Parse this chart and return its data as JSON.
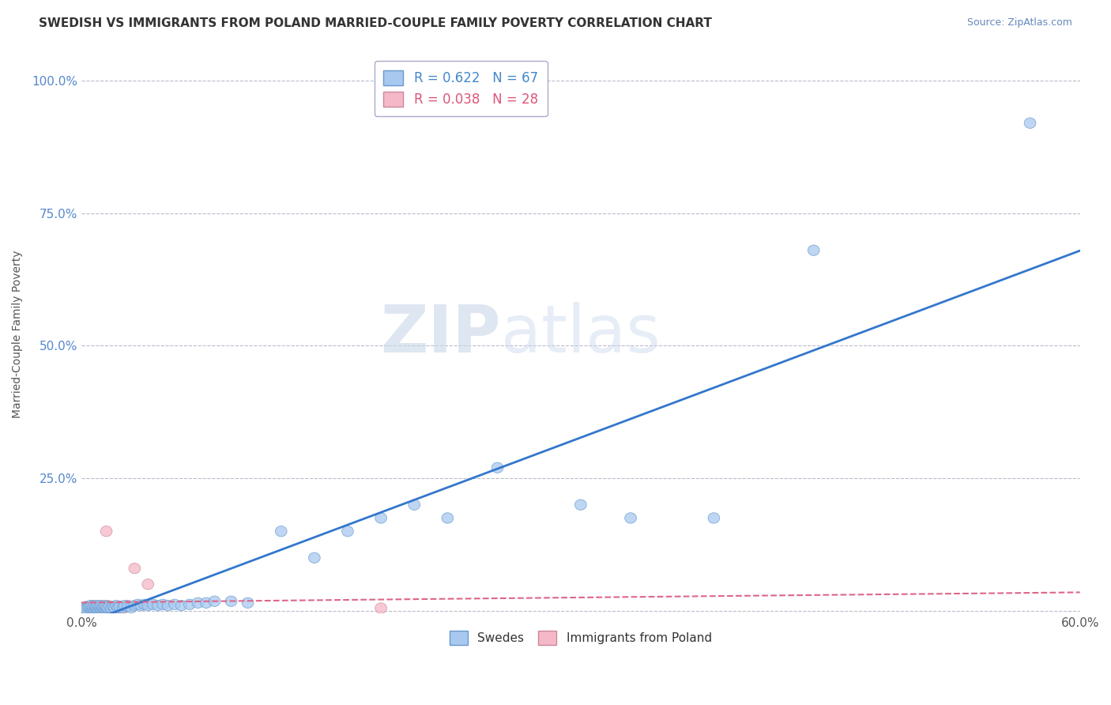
{
  "title": "SWEDISH VS IMMIGRANTS FROM POLAND MARRIED-COUPLE FAMILY POVERTY CORRELATION CHART",
  "source": "Source: ZipAtlas.com",
  "ylabel": "Married-Couple Family Poverty",
  "xlim": [
    0.0,
    0.6
  ],
  "ylim": [
    -0.005,
    1.05
  ],
  "xticks": [
    0.0,
    0.1,
    0.2,
    0.3,
    0.4,
    0.5,
    0.6
  ],
  "xticklabels": [
    "0.0%",
    "",
    "",
    "",
    "",
    "",
    "60.0%"
  ],
  "yticks": [
    0.0,
    0.25,
    0.5,
    0.75,
    1.0
  ],
  "yticklabels": [
    "",
    "25.0%",
    "50.0%",
    "75.0%",
    "100.0%"
  ],
  "legend_blue_label": "R = 0.622   N = 67",
  "legend_pink_label": "R = 0.038   N = 28",
  "swedes_label": "Swedes",
  "poland_label": "Immigrants from Poland",
  "blue_color": "#a8c8f0",
  "blue_edge": "#6699cc",
  "pink_color": "#f5b8c8",
  "pink_edge": "#cc8899",
  "blue_line_color": "#3377cc",
  "pink_line_color": "#dd6688",
  "grid_color": "#bbbbcc",
  "background_color": "#ffffff",
  "swedes_x": [
    0.002,
    0.003,
    0.003,
    0.004,
    0.005,
    0.005,
    0.006,
    0.006,
    0.007,
    0.007,
    0.008,
    0.008,
    0.009,
    0.009,
    0.01,
    0.01,
    0.011,
    0.011,
    0.012,
    0.012,
    0.013,
    0.013,
    0.014,
    0.014,
    0.015,
    0.015,
    0.016,
    0.017,
    0.018,
    0.019,
    0.02,
    0.021,
    0.022,
    0.023,
    0.025,
    0.026,
    0.028,
    0.03,
    0.032,
    0.034,
    0.036,
    0.038,
    0.04,
    0.043,
    0.046,
    0.049,
    0.052,
    0.056,
    0.06,
    0.065,
    0.07,
    0.075,
    0.08,
    0.09,
    0.1,
    0.12,
    0.14,
    0.16,
    0.18,
    0.2,
    0.22,
    0.25,
    0.3,
    0.33,
    0.38,
    0.44,
    0.57
  ],
  "swedes_y": [
    0.005,
    0.008,
    0.004,
    0.006,
    0.005,
    0.008,
    0.006,
    0.01,
    0.005,
    0.008,
    0.006,
    0.01,
    0.005,
    0.008,
    0.005,
    0.01,
    0.006,
    0.008,
    0.005,
    0.01,
    0.006,
    0.008,
    0.005,
    0.01,
    0.006,
    0.008,
    0.006,
    0.008,
    0.005,
    0.008,
    0.006,
    0.01,
    0.006,
    0.008,
    0.006,
    0.01,
    0.008,
    0.006,
    0.01,
    0.012,
    0.01,
    0.012,
    0.01,
    0.012,
    0.01,
    0.012,
    0.01,
    0.012,
    0.01,
    0.012,
    0.015,
    0.015,
    0.018,
    0.018,
    0.015,
    0.15,
    0.1,
    0.15,
    0.175,
    0.2,
    0.175,
    0.27,
    0.2,
    0.175,
    0.175,
    0.68,
    0.92
  ],
  "poland_x": [
    0.0,
    0.002,
    0.003,
    0.004,
    0.005,
    0.005,
    0.006,
    0.006,
    0.007,
    0.008,
    0.008,
    0.009,
    0.01,
    0.011,
    0.012,
    0.013,
    0.014,
    0.015,
    0.016,
    0.018,
    0.02,
    0.022,
    0.024,
    0.026,
    0.028,
    0.032,
    0.04,
    0.18
  ],
  "poland_y": [
    0.005,
    0.006,
    0.005,
    0.008,
    0.006,
    0.008,
    0.005,
    0.01,
    0.006,
    0.008,
    0.005,
    0.008,
    0.006,
    0.008,
    0.005,
    0.008,
    0.006,
    0.15,
    0.01,
    0.006,
    0.008,
    0.005,
    0.008,
    0.006,
    0.01,
    0.08,
    0.05,
    0.005
  ]
}
